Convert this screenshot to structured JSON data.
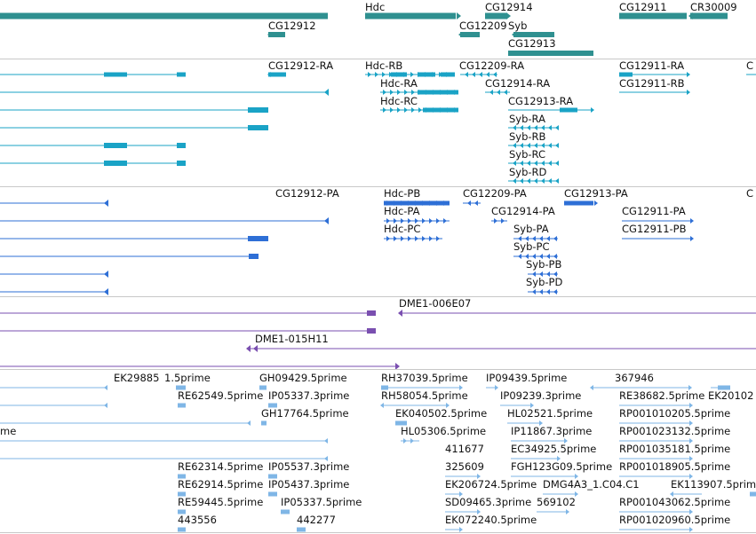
{
  "colors": {
    "gene": "#2f9090",
    "mrna": "#1aa3c6",
    "protein": "#2e6fd6",
    "clone": "#7a4fb0",
    "est": "#7fb6e6",
    "divider": "#c8c8c8"
  },
  "tracks": [
    {
      "name": "gene-track",
      "color": "gene",
      "labels": [
        "Hdc",
        "CG12914",
        "CG12911",
        "CR30009",
        "CG12912",
        "CG12209",
        "Syb",
        "CG12913"
      ]
    },
    {
      "name": "mrna-track",
      "color": "mrna",
      "labels": [
        "CG12912-RA",
        "Hdc-RB",
        "CG12209-RA",
        "CG12911-RA",
        "C",
        "Hdc-RA",
        "CG12914-RA",
        "CG12911-RB",
        "Hdc-RC",
        "CG12913-RA",
        "Syb-RA",
        "Syb-RB",
        "Syb-RC",
        "Syb-RD"
      ]
    },
    {
      "name": "protein-track",
      "color": "protein",
      "labels": [
        "CG12912-PA",
        "Hdc-PB",
        "CG12209-PA",
        "CG12913-PA",
        "C",
        "Hdc-PA",
        "CG12914-PA",
        "CG12911-PA",
        "Hdc-PC",
        "Syb-PA",
        "CG12911-PB",
        "Syb-PC",
        "Syb-PB",
        "Syb-PD"
      ]
    },
    {
      "name": "clone-track",
      "color": "clone",
      "labels": [
        "DME1-006E07",
        "DME1-015H11"
      ]
    },
    {
      "name": "est-track",
      "color": "est",
      "labels": [
        "EK29885",
        "1.5prime",
        "GH09429.5prime",
        "RH37039.5prime",
        "IP09439.5prime",
        "367946",
        "RE62549.5prime",
        "IP05337.3prime",
        "RH58054.5prime",
        "IP09239.3prime",
        "RE38682.5prime",
        "EK20102",
        "GH17764.5prime",
        "EK040502.5prime",
        "HL02521.5prime",
        "RP001010205.5prime",
        "me",
        "HL05306.5prime",
        "IP11867.3prime",
        "RP001023132.5prime",
        "411677",
        "EC34925.5prime",
        "RP001035181.5prime",
        "RE62314.5prime",
        "IP05537.3prime",
        "325609",
        "FGH123G09.5prime",
        "RP001018905.5prime",
        "RE62914.5prime",
        "IP05437.3prime",
        "EK206724.5prime",
        "DMG4A3_1.C04.C1",
        "EK113907.5prime",
        "RE59445.5prime",
        "IP05337.5prime",
        "SD09465.3prime",
        "569102",
        "RP001043062.5prime",
        "443556",
        "442277",
        "EK072240.5prime",
        "RP001020960.5prime"
      ]
    }
  ]
}
